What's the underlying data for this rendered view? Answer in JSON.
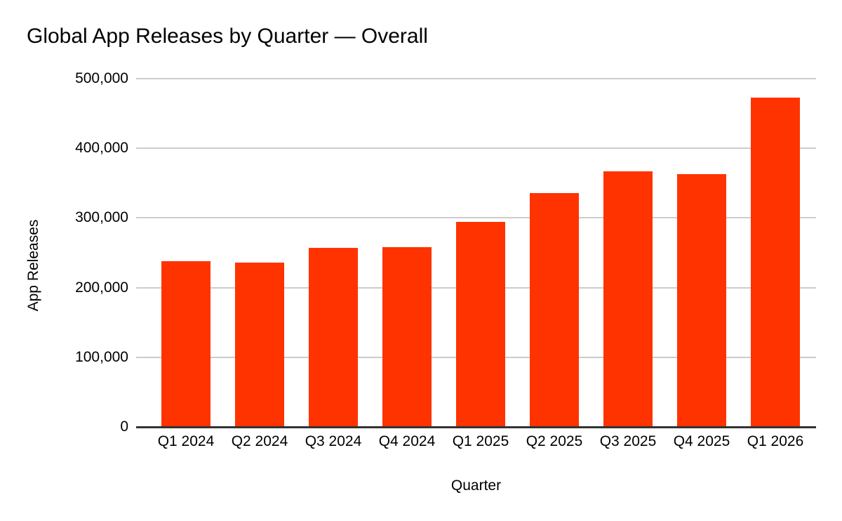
{
  "chart_data": {
    "type": "bar",
    "title": "Global App Releases by Quarter — Overall",
    "xlabel": "Quarter",
    "ylabel": "App Releases",
    "categories": [
      "Q1 2024",
      "Q2 2024",
      "Q3 2024",
      "Q4 2024",
      "Q1 2025",
      "Q2 2025",
      "Q3 2025",
      "Q4 2025",
      "Q1 2026"
    ],
    "values": [
      238000,
      236000,
      257000,
      258000,
      294000,
      336000,
      367000,
      363000,
      473000
    ],
    "ylim": [
      0,
      500000
    ],
    "ytick_interval": 100000,
    "ytick_labels": [
      "0",
      "100,000",
      "200,000",
      "300,000",
      "400,000",
      "500,000"
    ],
    "grid": true,
    "legend": "none",
    "bar_color": "#FF3300",
    "gridline_color": "#CCCCCC",
    "axis_line_color": "#333333",
    "text_color": "#000000",
    "background_color": "#FFFFFF"
  }
}
